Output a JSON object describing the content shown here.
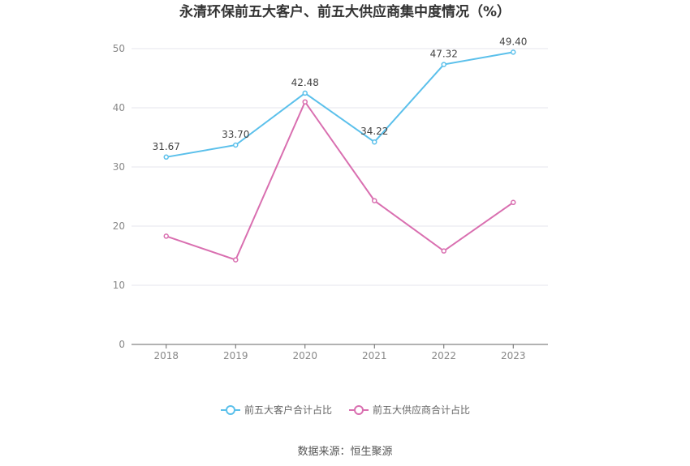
{
  "chart_data": {
    "type": "line",
    "title": "永清环保前五大客户、前五大供应商集中度情况（%）",
    "categories": [
      "2018",
      "2019",
      "2020",
      "2021",
      "2022",
      "2023"
    ],
    "ylim": [
      0,
      50
    ],
    "yticks": [
      "0",
      "10",
      "20",
      "30",
      "40",
      "50"
    ],
    "grid": true,
    "legend_position": "bottom",
    "series": [
      {
        "name": "前五大客户合计占比",
        "color": "#5bc0eb",
        "values": [
          31.67,
          33.7,
          42.48,
          34.22,
          47.32,
          49.4
        ],
        "labels": [
          "31.67",
          "33.70",
          "42.48",
          "34.22",
          "47.32",
          "49.40"
        ]
      },
      {
        "name": "前五大供应商合计占比",
        "color": "#d96fb0",
        "values": [
          18.3,
          14.3,
          41.0,
          24.3,
          15.8,
          24.0
        ],
        "labels": []
      }
    ]
  },
  "source": "数据来源：恒生聚源"
}
